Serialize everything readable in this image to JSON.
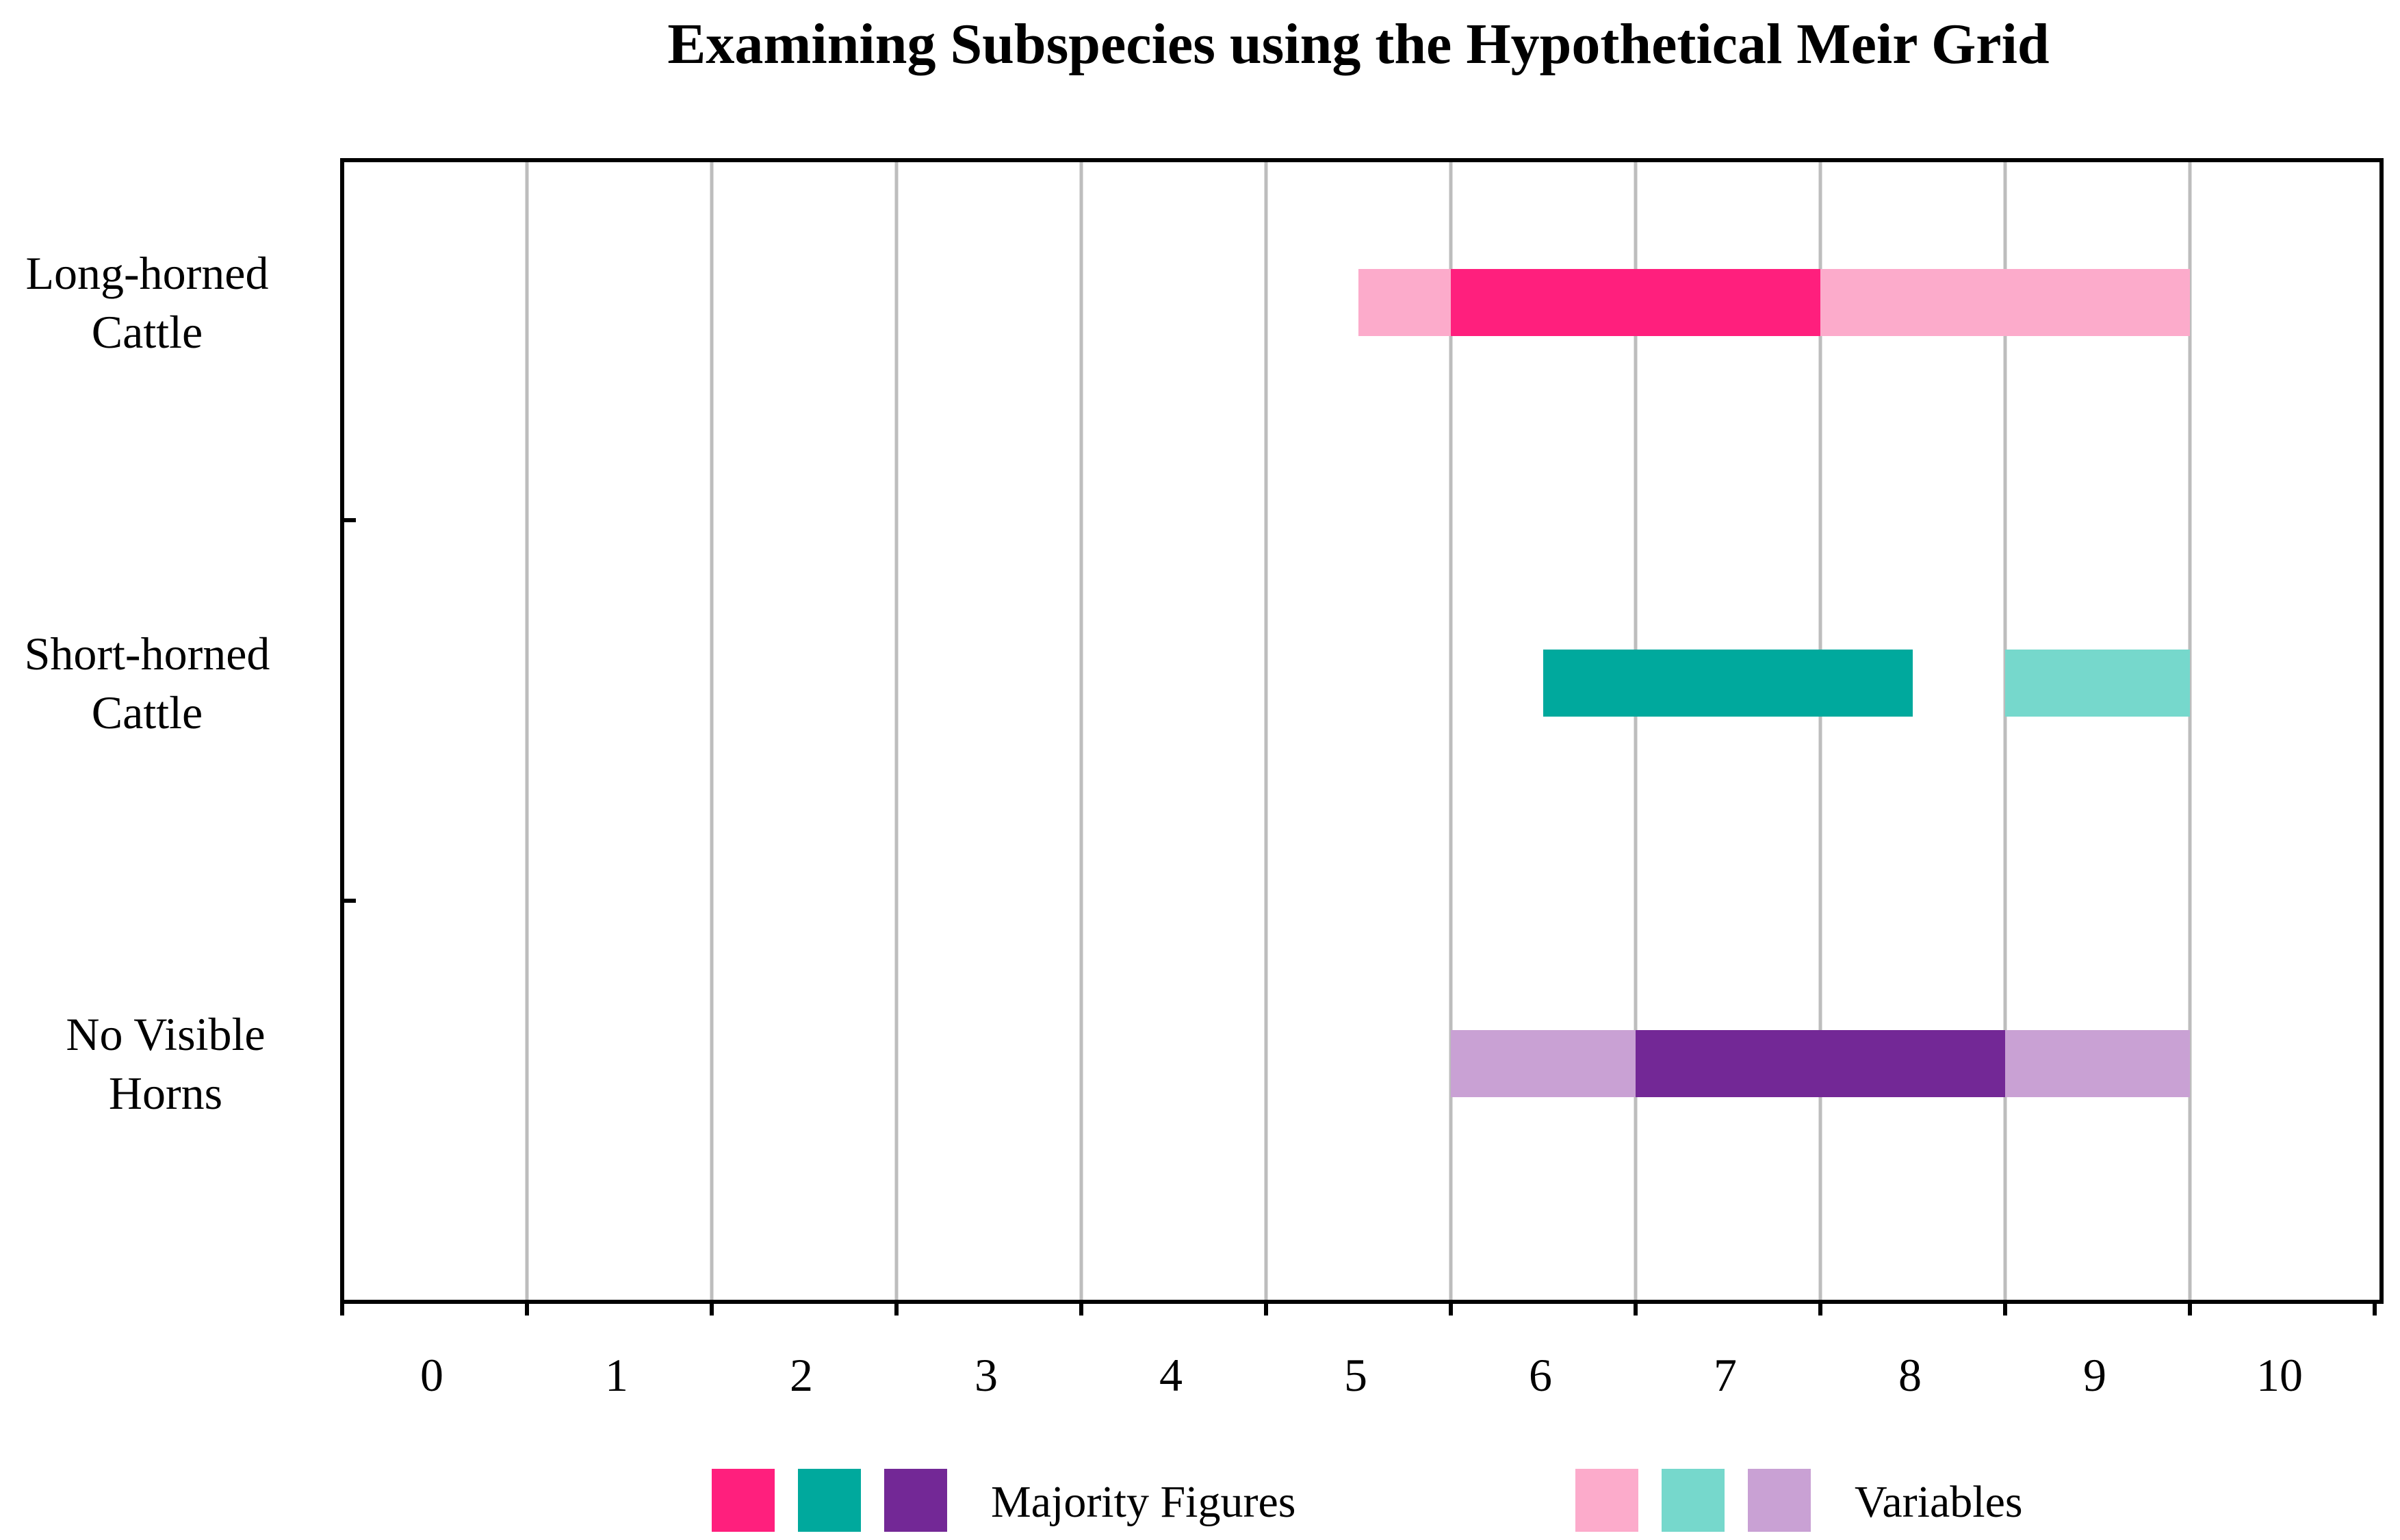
{
  "chart_data": {
    "type": "bar",
    "orientation": "horizontal-range",
    "title": "Examining Subspecies using the Hypothetical Meir Grid",
    "xlabel": "",
    "ylabel": "",
    "xlim": [
      0,
      11
    ],
    "xticks": [
      "0",
      "1",
      "2",
      "3",
      "4",
      "5",
      "6",
      "7",
      "8",
      "9",
      "10"
    ],
    "categories": [
      {
        "line1": "Long-horned",
        "line2": "Cattle"
      },
      {
        "line1": "Short-horned",
        "line2": "Cattle"
      },
      {
        "line1": "No Visible",
        "line2": "Horns"
      }
    ],
    "grid": true,
    "series": [
      {
        "name": "Variables",
        "category": 0,
        "start": 5.5,
        "end": 6.0,
        "color": "#fcabcb"
      },
      {
        "name": "Majority Figures",
        "category": 0,
        "start": 6.0,
        "end": 8.0,
        "color": "#ff1f7d"
      },
      {
        "name": "Variables",
        "category": 0,
        "start": 8.0,
        "end": 10.0,
        "color": "#fcabcb"
      },
      {
        "name": "Majority Figures",
        "category": 1,
        "start": 6.5,
        "end": 8.5,
        "color": "#00a99d"
      },
      {
        "name": "Variables",
        "category": 1,
        "start": 9.0,
        "end": 10.0,
        "color": "#76d8cc"
      },
      {
        "name": "Variables",
        "category": 2,
        "start": 6.0,
        "end": 7.0,
        "color": "#c9a1d4"
      },
      {
        "name": "Majority Figures",
        "category": 2,
        "start": 7.0,
        "end": 9.0,
        "color": "#732896"
      },
      {
        "name": "Variables",
        "category": 2,
        "start": 9.0,
        "end": 10.0,
        "color": "#c9a1d4"
      }
    ],
    "legend": {
      "placement": "bottom",
      "groups": [
        {
          "label": "Majority Figures",
          "colors": [
            "#ff1f7d",
            "#00a99d",
            "#732896"
          ]
        },
        {
          "label": "Variables",
          "colors": [
            "#fcabcb",
            "#76d8cc",
            "#c9a1d4"
          ]
        }
      ]
    }
  }
}
